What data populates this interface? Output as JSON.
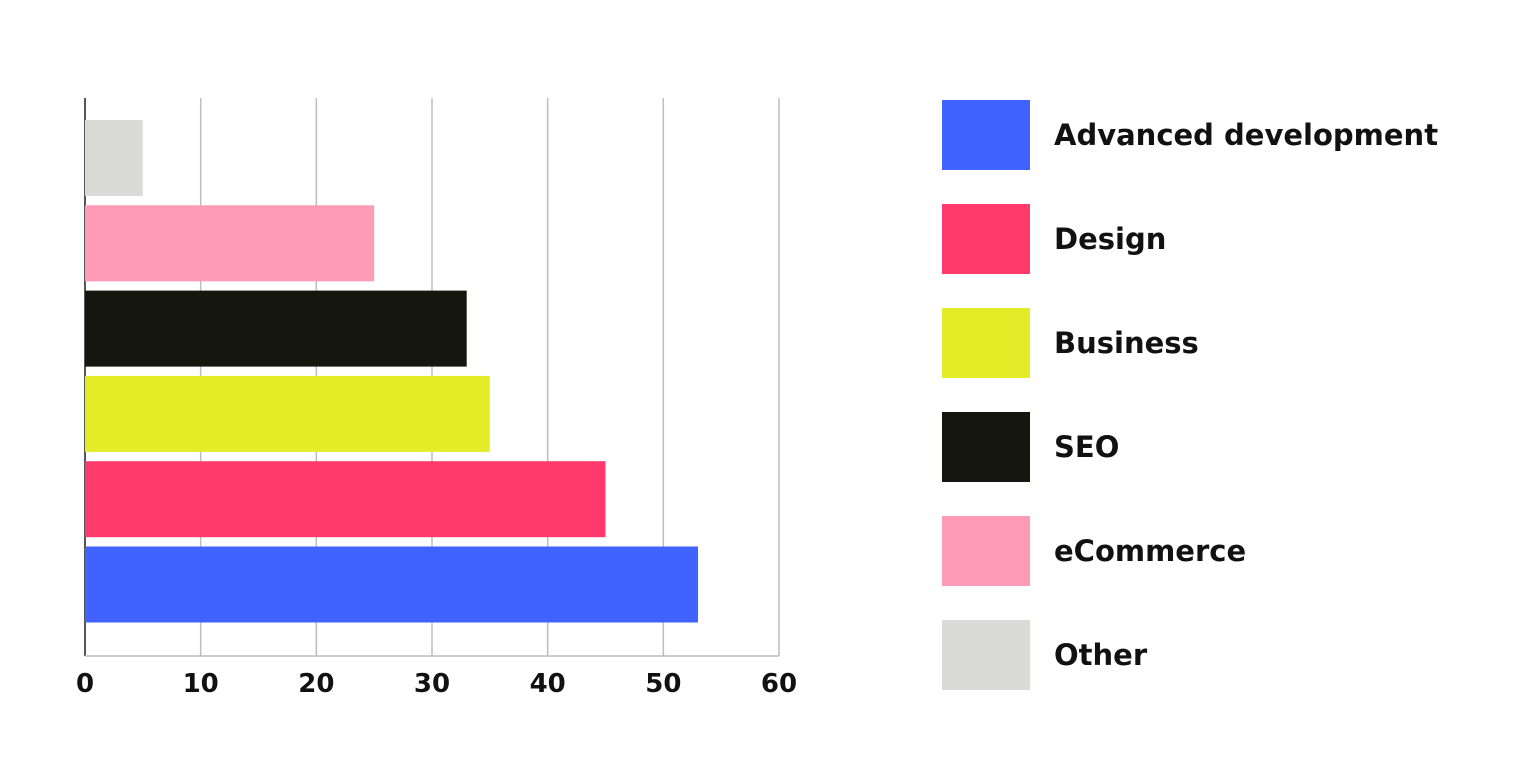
{
  "chart_data": {
    "type": "bar",
    "orientation": "horizontal",
    "title": "",
    "xlabel": "",
    "ylabel": "",
    "categories": [
      "Other",
      "eCommerce",
      "SEO",
      "Business",
      "Design",
      "Advanced development"
    ],
    "values": [
      5,
      25,
      33,
      35,
      45,
      53
    ],
    "colors": [
      "#dadbd7",
      "#ff9bb5",
      "#15170e",
      "#e4ec28",
      "#ff3a6c",
      "#4063ff"
    ],
    "xlim": [
      0,
      60
    ],
    "x_ticks": [
      "0",
      "10",
      "20",
      "30",
      "40",
      "50",
      "60"
    ],
    "grid": "vertical",
    "legend_position": "right",
    "legend": [
      {
        "label": "Advanced development",
        "color": "#4063ff"
      },
      {
        "label": "Design",
        "color": "#ff3a6c"
      },
      {
        "label": "Business",
        "color": "#e4ec28"
      },
      {
        "label": "SEO",
        "color": "#15170e"
      },
      {
        "label": "eCommerce",
        "color": "#ff9bb5"
      },
      {
        "label": "Other",
        "color": "#dadbd7"
      }
    ]
  }
}
